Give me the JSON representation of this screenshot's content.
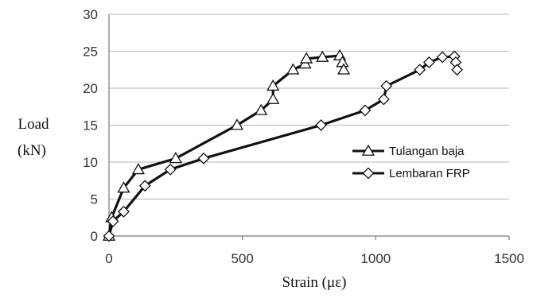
{
  "chart_data": {
    "type": "line",
    "title": "",
    "xlabel": "Strain (με)",
    "ylabel": [
      "Load",
      "(kN)"
    ],
    "xlim": [
      0,
      1500
    ],
    "ylim": [
      0,
      30
    ],
    "xticks": [
      0,
      500,
      1000,
      1500
    ],
    "yticks": [
      0,
      5,
      10,
      15,
      20,
      25,
      30
    ],
    "xtick_labels": [
      "0",
      "500",
      "1000",
      "1500"
    ],
    "ytick_labels": [
      "0",
      "5",
      "10",
      "15",
      "20",
      "25",
      "30"
    ],
    "grid": "horizontal",
    "legend_position": "right",
    "series": [
      {
        "name": "Tulangan baja",
        "marker": "triangle",
        "color": "#111111",
        "x": [
          0,
          10,
          55,
          110,
          250,
          480,
          570,
          615,
          615,
          690,
          735,
          740,
          800,
          865,
          875,
          880
        ],
        "y": [
          0,
          2.5,
          6.5,
          9.0,
          10.5,
          15.0,
          17.0,
          18.5,
          20.3,
          22.5,
          23.3,
          24.0,
          24.2,
          24.4,
          23.5,
          22.5
        ]
      },
      {
        "name": "Lembaran FRP",
        "marker": "diamond",
        "color": "#111111",
        "x": [
          0,
          15,
          55,
          135,
          230,
          355,
          795,
          960,
          1030,
          1040,
          1165,
          1200,
          1250,
          1295,
          1300,
          1305
        ],
        "y": [
          0,
          2.0,
          3.3,
          6.8,
          9.0,
          10.5,
          15.0,
          17.0,
          18.5,
          20.3,
          22.5,
          23.5,
          24.2,
          24.3,
          23.5,
          22.5
        ]
      }
    ]
  }
}
